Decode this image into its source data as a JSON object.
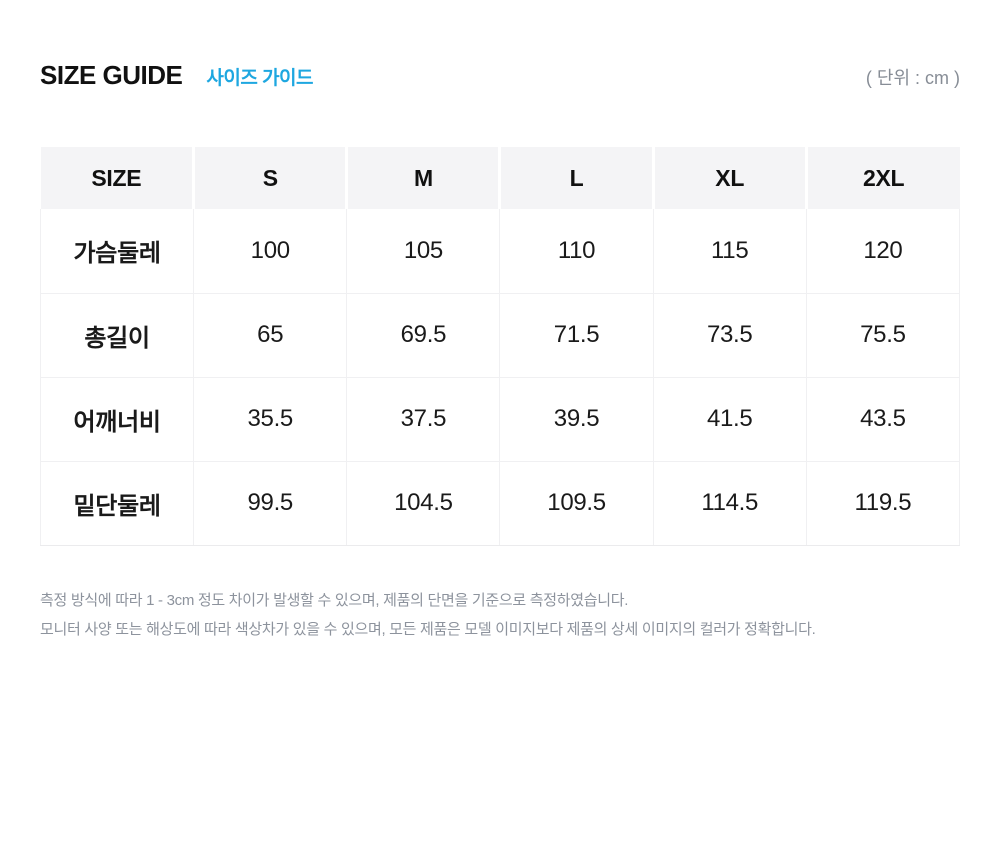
{
  "header": {
    "title": "SIZE GUIDE",
    "subtitle": "사이즈 가이드",
    "unit_label": "( 단위 : cm )"
  },
  "size_table": {
    "columns": [
      "SIZE",
      "S",
      "M",
      "L",
      "XL",
      "2XL"
    ],
    "rows": [
      {
        "label": "가슴둘레",
        "values": [
          "100",
          "105",
          "110",
          "115",
          "120"
        ]
      },
      {
        "label": "총길이",
        "values": [
          "65",
          "69.5",
          "71.5",
          "73.5",
          "75.5"
        ]
      },
      {
        "label": "어깨너비",
        "values": [
          "35.5",
          "37.5",
          "39.5",
          "41.5",
          "43.5"
        ]
      },
      {
        "label": "밑단둘레",
        "values": [
          "99.5",
          "104.5",
          "109.5",
          "114.5",
          "119.5"
        ]
      }
    ]
  },
  "notes": [
    "측정 방식에 따라 1 - 3cm 정도 차이가 발생할 수 있으며, 제품의 단면을 기준으로 측정하였습니다.",
    "모니터 사양 또는 해상도에 따라 색상차가 있을 수 있으며, 모든 제품은 모델 이미지보다 제품의 상세 이미지의 컬러가 정확합니다."
  ],
  "colors": {
    "accent_blue": "#1ea7e0",
    "table_header_bg": "#f4f4f6",
    "table_border": "#f0f0f2",
    "muted_text": "#8d939d",
    "title_text": "#111111"
  }
}
